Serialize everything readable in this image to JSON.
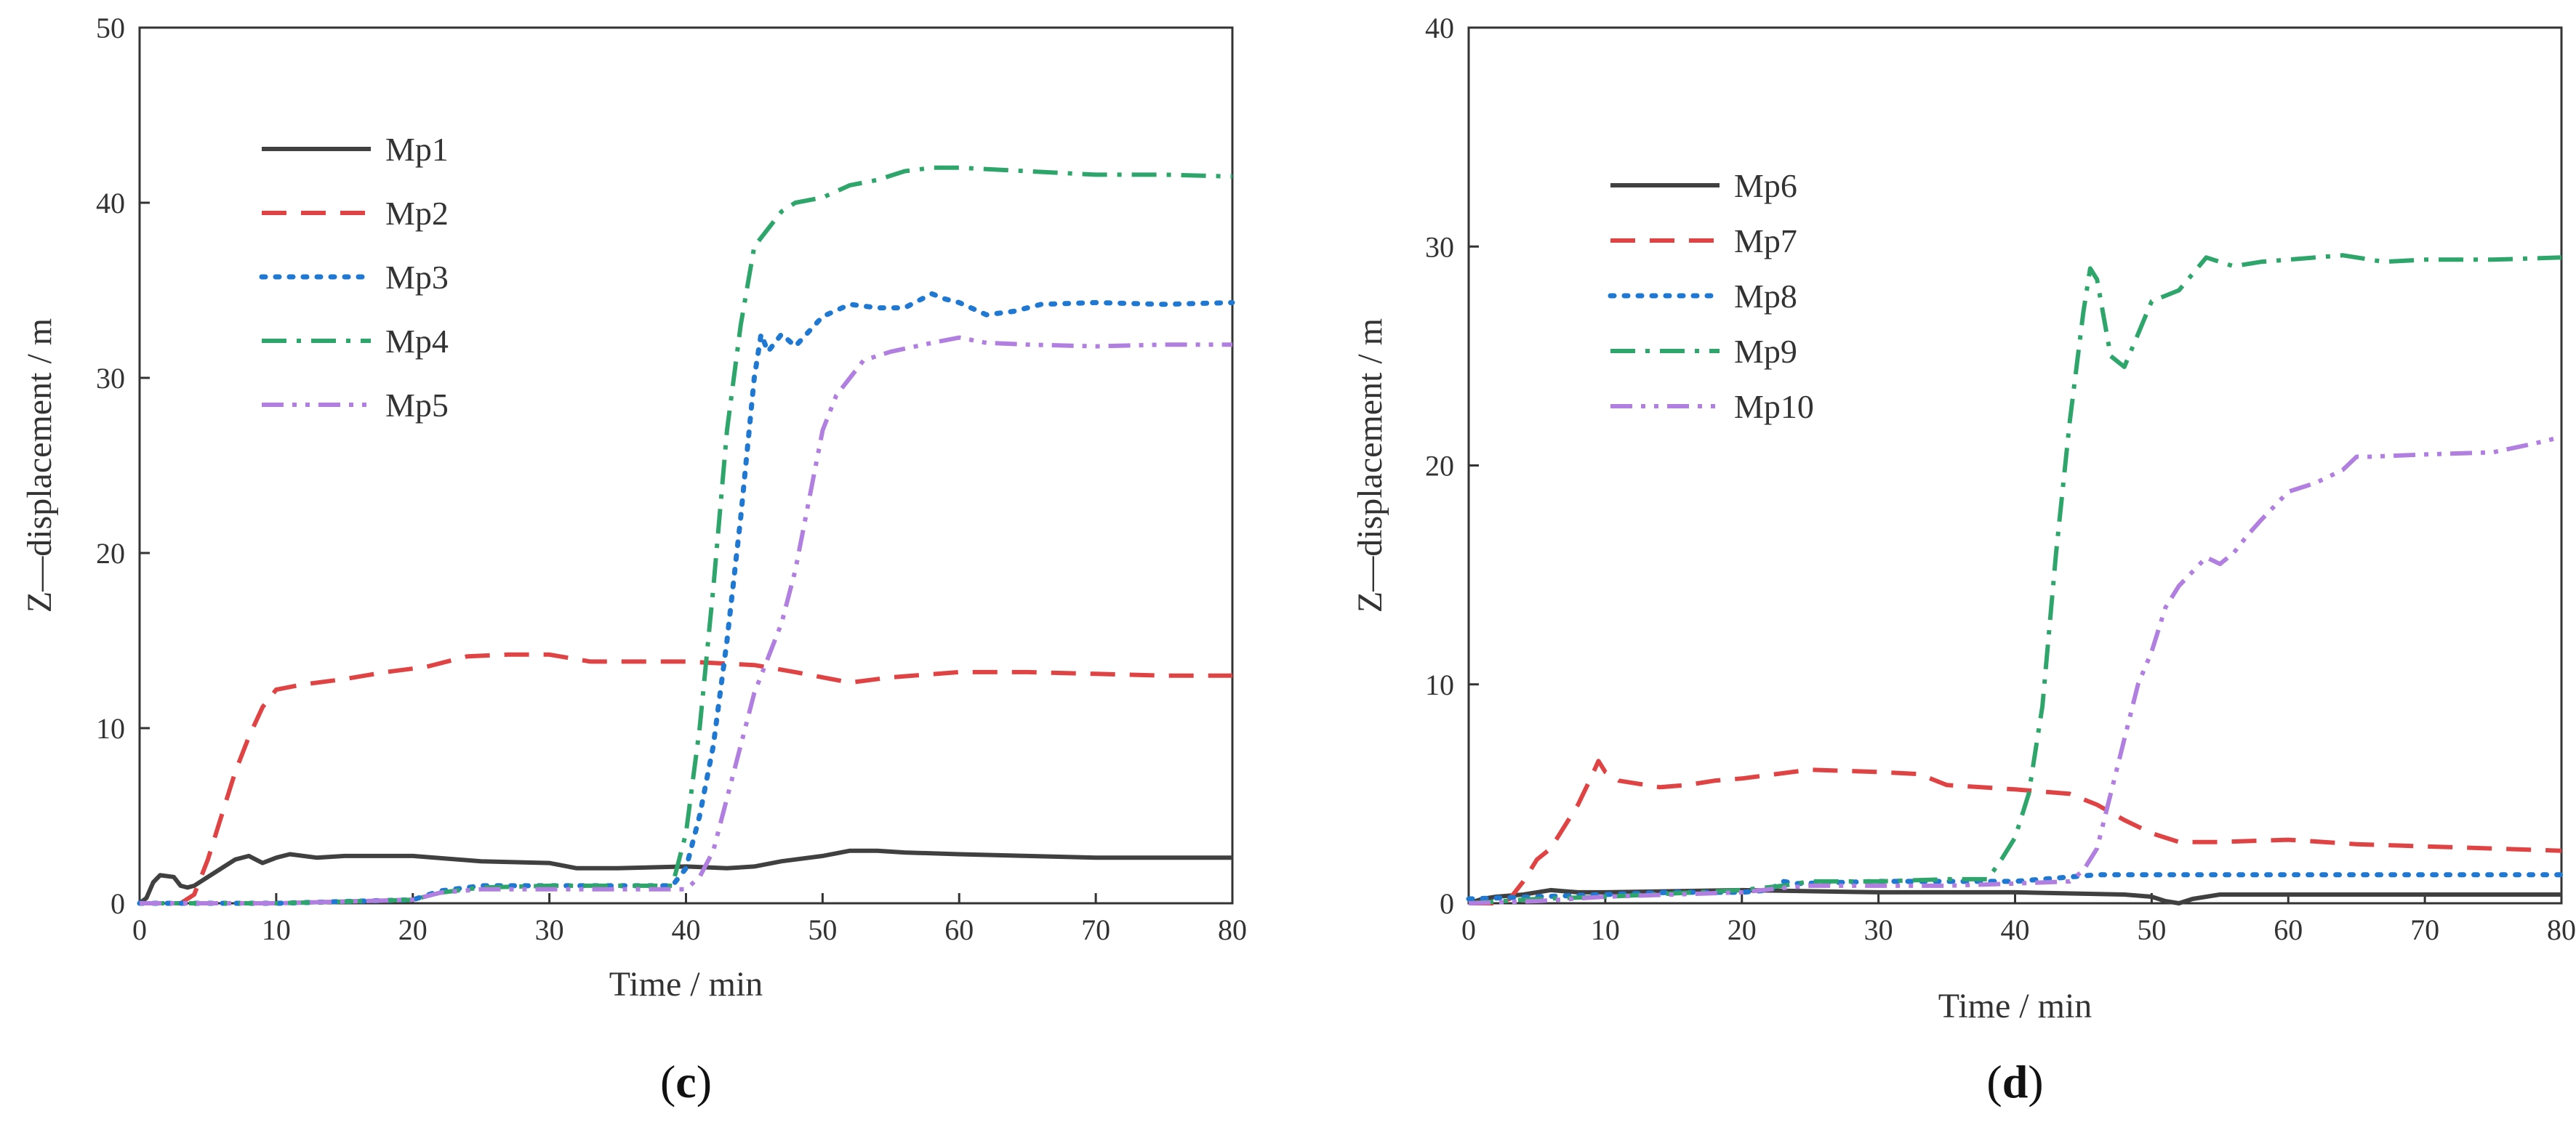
{
  "figure": {
    "panel_labels": [
      {
        "open": "(",
        "letter": "c",
        "close": ")"
      },
      {
        "open": "(",
        "letter": "d",
        "close": ")"
      }
    ]
  },
  "chart_data": [
    {
      "type": "line",
      "panel": "c",
      "xlabel": "Time / min",
      "ylabel": "Z—displacement / m",
      "xlim": [
        0,
        80
      ],
      "ylim": [
        0,
        50
      ],
      "xticks": [
        0,
        10,
        20,
        30,
        40,
        50,
        60,
        70,
        80
      ],
      "yticks": [
        0,
        10,
        20,
        30,
        40,
        50
      ],
      "legend_position": "upper-left",
      "series": [
        {
          "name": "Mp1",
          "color": "#404040",
          "dash": "solid",
          "x": [
            0,
            0.5,
            1,
            1.5,
            2.5,
            3,
            3.5,
            4,
            5,
            6,
            7,
            8,
            9,
            10,
            11,
            13,
            15,
            20,
            25,
            30,
            32,
            35,
            40,
            43,
            45,
            47,
            50,
            52,
            54,
            56,
            60,
            65,
            70,
            80
          ],
          "y": [
            0,
            0.3,
            1.2,
            1.6,
            1.5,
            1.0,
            0.9,
            1.0,
            1.5,
            2.0,
            2.5,
            2.7,
            2.3,
            2.6,
            2.8,
            2.6,
            2.7,
            2.7,
            2.4,
            2.3,
            2.0,
            2.0,
            2.1,
            2.0,
            2.1,
            2.4,
            2.7,
            3.0,
            3.0,
            2.9,
            2.8,
            2.7,
            2.6,
            2.6
          ]
        },
        {
          "name": "Mp2",
          "color": "#e04343",
          "dash": "dashed",
          "x": [
            0,
            3,
            4,
            5,
            6,
            7,
            8,
            9,
            10,
            12,
            15,
            18,
            21,
            24,
            27,
            30,
            33,
            36,
            40,
            45,
            48,
            52,
            55,
            60,
            65,
            70,
            75,
            80
          ],
          "y": [
            0,
            0,
            0.5,
            2.5,
            5,
            7.5,
            9.5,
            11.2,
            12.2,
            12.5,
            12.8,
            13.2,
            13.5,
            14.1,
            14.2,
            14.2,
            13.8,
            13.8,
            13.8,
            13.6,
            13.2,
            12.6,
            12.9,
            13.2,
            13.2,
            13.1,
            13.0,
            13.0
          ]
        },
        {
          "name": "Mp3",
          "color": "#1f78d1",
          "dash": "dotted",
          "x": [
            0,
            10,
            20,
            22,
            25,
            30,
            35,
            39,
            40,
            41,
            42,
            43,
            44,
            45,
            45.5,
            46,
            47,
            48,
            50,
            52,
            54,
            56,
            58,
            59,
            60,
            62,
            64,
            66,
            70,
            75,
            80
          ],
          "y": [
            0,
            0,
            0.2,
            0.7,
            1.0,
            1.0,
            1.0,
            1.0,
            2,
            5,
            9,
            15,
            22,
            30,
            32.5,
            31.5,
            32.5,
            31.8,
            33.5,
            34.2,
            34.0,
            34.0,
            34.8,
            34.5,
            34.3,
            33.6,
            33.8,
            34.2,
            34.3,
            34.2,
            34.3
          ]
        },
        {
          "name": "Mp4",
          "color": "#2ea66b",
          "dash": "dashdot",
          "x": [
            0,
            10,
            20,
            22,
            25,
            30,
            35,
            38,
            39,
            40,
            41,
            42,
            43,
            44,
            45,
            46,
            47,
            48,
            50,
            52,
            54,
            56,
            58,
            60,
            65,
            70,
            75,
            80
          ],
          "y": [
            0,
            0,
            0.2,
            0.6,
            0.9,
            1.0,
            1.0,
            1.0,
            1.0,
            4,
            10,
            18,
            27,
            33,
            37.5,
            38.5,
            39.5,
            40.0,
            40.3,
            41.0,
            41.3,
            41.8,
            42.0,
            42.0,
            41.8,
            41.6,
            41.6,
            41.5
          ]
        },
        {
          "name": "Mp5",
          "color": "#b07fe0",
          "dash": "dashdotdot",
          "x": [
            0,
            10,
            20,
            22,
            25,
            30,
            35,
            38,
            40,
            41,
            42,
            43,
            44,
            45,
            46,
            47,
            48,
            49,
            50,
            51,
            52,
            53,
            55,
            58,
            60,
            62,
            65,
            70,
            75,
            80
          ],
          "y": [
            0,
            0,
            0.2,
            0.6,
            0.8,
            0.8,
            0.8,
            0.8,
            0.8,
            1.5,
            3,
            6,
            9,
            12,
            14,
            16,
            19,
            23,
            27,
            29,
            30,
            31,
            31.5,
            32.0,
            32.3,
            32.0,
            31.9,
            31.8,
            31.9,
            31.9
          ]
        }
      ]
    },
    {
      "type": "line",
      "panel": "d",
      "xlabel": "Time / min",
      "ylabel": "Z—displacement / m",
      "xlim": [
        0,
        80
      ],
      "ylim": [
        0,
        40
      ],
      "xticks": [
        0,
        10,
        20,
        30,
        40,
        50,
        60,
        70,
        80
      ],
      "yticks": [
        0,
        10,
        20,
        30,
        40
      ],
      "legend_position": "upper-left",
      "series": [
        {
          "name": "Mp6",
          "color": "#404040",
          "dash": "solid",
          "x": [
            0,
            1,
            2,
            4,
            6,
            8,
            10,
            20,
            30,
            40,
            48,
            50,
            51,
            52,
            53,
            55,
            60,
            70,
            80
          ],
          "y": [
            0,
            0.2,
            0.3,
            0.4,
            0.6,
            0.5,
            0.5,
            0.6,
            0.5,
            0.5,
            0.4,
            0.3,
            0.1,
            0.0,
            0.2,
            0.4,
            0.4,
            0.4,
            0.4
          ]
        },
        {
          "name": "Mp7",
          "color": "#e04343",
          "dash": "dashed",
          "x": [
            0,
            2,
            3,
            4,
            5,
            6,
            7,
            8,
            9,
            9.5,
            10,
            11,
            12,
            14,
            16,
            18,
            20,
            25,
            30,
            33,
            35,
            40,
            44,
            46,
            48,
            50,
            52,
            55,
            60,
            65,
            70,
            75,
            80
          ],
          "y": [
            0,
            0,
            0.2,
            1.0,
            2.0,
            2.5,
            3.5,
            4.5,
            5.8,
            6.5,
            6.0,
            5.6,
            5.5,
            5.3,
            5.4,
            5.6,
            5.7,
            6.1,
            6.0,
            5.9,
            5.4,
            5.2,
            5.0,
            4.5,
            3.8,
            3.2,
            2.8,
            2.8,
            2.9,
            2.7,
            2.6,
            2.5,
            2.4
          ]
        },
        {
          "name": "Mp8",
          "color": "#1f78d1",
          "dash": "dotted",
          "x": [
            0,
            5,
            10,
            15,
            20,
            22,
            23,
            24,
            30,
            35,
            38,
            40,
            42,
            44,
            46,
            50,
            60,
            70,
            80
          ],
          "y": [
            0.2,
            0.3,
            0.4,
            0.5,
            0.5,
            0.6,
            1.0,
            0.9,
            1.0,
            1.0,
            1.0,
            1.0,
            1.1,
            1.2,
            1.3,
            1.3,
            1.3,
            1.3,
            1.3
          ]
        },
        {
          "name": "Mp9",
          "color": "#2ea66b",
          "dash": "dashdot",
          "x": [
            0,
            5,
            10,
            20,
            23,
            25,
            30,
            35,
            38,
            39,
            40,
            41,
            42,
            43,
            44,
            45,
            45.5,
            46,
            47,
            48,
            49,
            50,
            52,
            54,
            56,
            58,
            60,
            64,
            67,
            70,
            75,
            80
          ],
          "y": [
            0,
            0.2,
            0.3,
            0.6,
            0.8,
            1.0,
            1.0,
            1.1,
            1.1,
            2,
            3,
            5,
            9,
            16,
            22,
            27,
            29,
            28.5,
            25,
            24.5,
            26,
            27.5,
            28.0,
            29.5,
            29.1,
            29.3,
            29.4,
            29.6,
            29.3,
            29.4,
            29.4,
            29.5
          ]
        },
        {
          "name": "Mp10",
          "color": "#b07fe0",
          "dash": "dashdotdot",
          "x": [
            0,
            5,
            10,
            20,
            23,
            25,
            30,
            35,
            40,
            44,
            45,
            46,
            47,
            48,
            49,
            50,
            51,
            52,
            54,
            55,
            56,
            57,
            58,
            60,
            62,
            64,
            65,
            66,
            70,
            75,
            78,
            80
          ],
          "y": [
            0,
            0.1,
            0.3,
            0.5,
            0.7,
            0.8,
            0.8,
            0.8,
            0.9,
            1.0,
            1.5,
            2.5,
            5,
            7.5,
            10,
            11.5,
            13.5,
            14.5,
            15.8,
            15.5,
            16.0,
            16.8,
            17.5,
            18.8,
            19.2,
            19.8,
            20.4,
            20.4,
            20.5,
            20.6,
            21.0,
            21.3
          ]
        }
      ]
    }
  ]
}
